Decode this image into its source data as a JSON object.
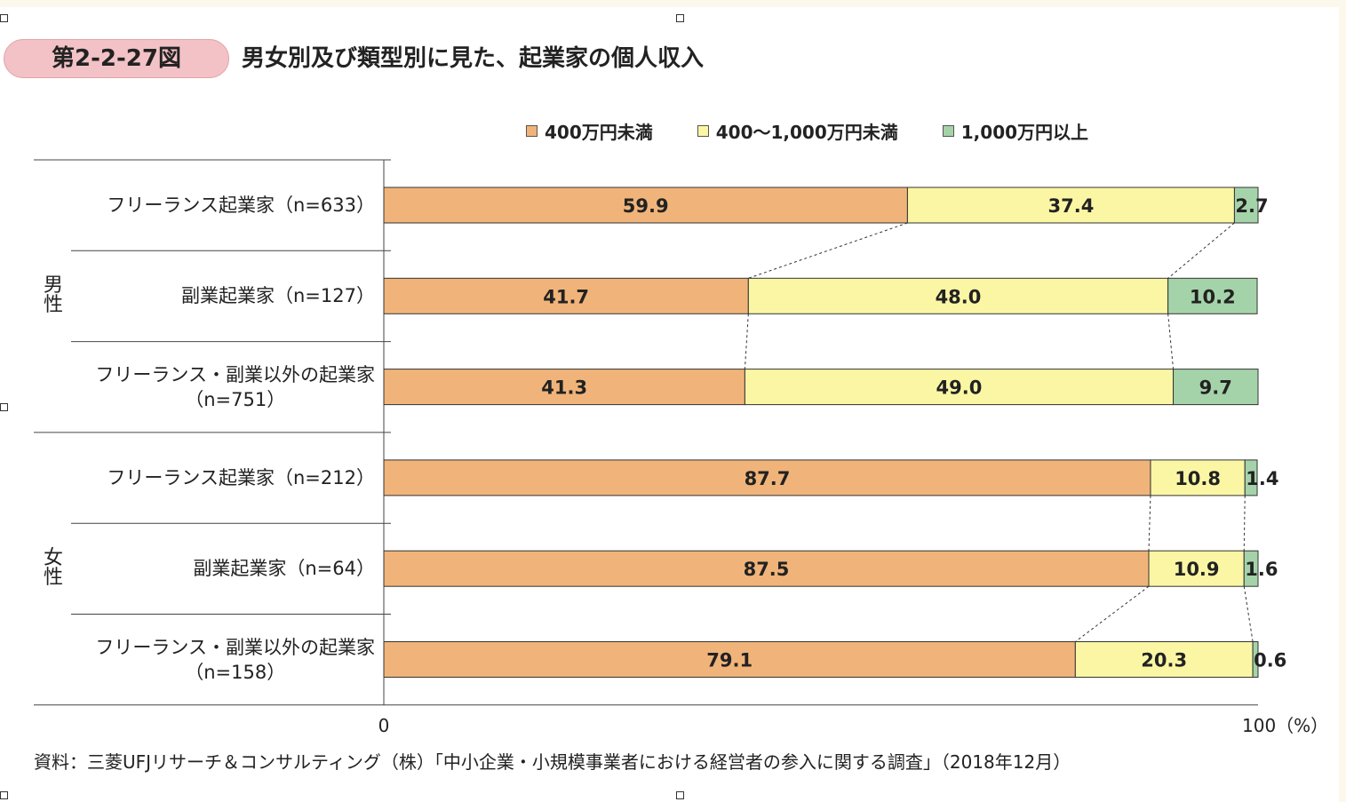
{
  "figure": {
    "number": "第2-2-27図",
    "title": "男女別及び類型別に見た、起業家の個人収入",
    "source": "資料：三菱UFJリサーチ＆コンサルティング（株）「中小企業・小規模事業者における経営者の参入に関する調査」（2018年12月）"
  },
  "chart_data": {
    "type": "bar",
    "orientation": "horizontal",
    "stacked": true,
    "title": "男女別及び類型別に見た、起業家の個人収入",
    "xlabel": "",
    "ylabel": "",
    "xlim": [
      0,
      100
    ],
    "x_ticks": [
      "0",
      "100（%）"
    ],
    "legend_position": "top",
    "groups": [
      {
        "label": "男性",
        "categories": [
          0,
          1,
          2
        ]
      },
      {
        "label": "女性",
        "categories": [
          3,
          4,
          5
        ]
      }
    ],
    "categories": [
      {
        "line1": "フリーランス起業家（n=633）",
        "line2": ""
      },
      {
        "line1": "副業起業家（n=127）",
        "line2": ""
      },
      {
        "line1": "フリーランス・副業以外の起業家",
        "line2": "（n=751）"
      },
      {
        "line1": "フリーランス起業家（n=212）",
        "line2": ""
      },
      {
        "line1": "副業起業家（n=64）",
        "line2": ""
      },
      {
        "line1": "フリーランス・副業以外の起業家",
        "line2": "（n=158）"
      }
    ],
    "series": [
      {
        "name": "400万円未満",
        "color": "#f0b47a",
        "values": [
          59.9,
          41.7,
          41.3,
          87.7,
          87.5,
          79.1
        ],
        "labels": [
          "59.9",
          "41.7",
          "41.3",
          "87.7",
          "87.5",
          "79.1"
        ]
      },
      {
        "name": "400～1,000万円未満",
        "color": "#fbf6a4",
        "values": [
          37.4,
          48.0,
          49.0,
          10.8,
          10.9,
          20.3
        ],
        "labels": [
          "37.4",
          "48.0",
          "49.0",
          "10.8",
          "10.9",
          "20.3"
        ]
      },
      {
        "name": "1,000万円以上",
        "color": "#a5d3a9",
        "values": [
          2.7,
          10.2,
          9.7,
          1.4,
          1.6,
          0.6
        ],
        "labels": [
          "2.7",
          "10.2",
          "9.7",
          "1.4",
          "1.6",
          "0.6"
        ]
      }
    ]
  }
}
